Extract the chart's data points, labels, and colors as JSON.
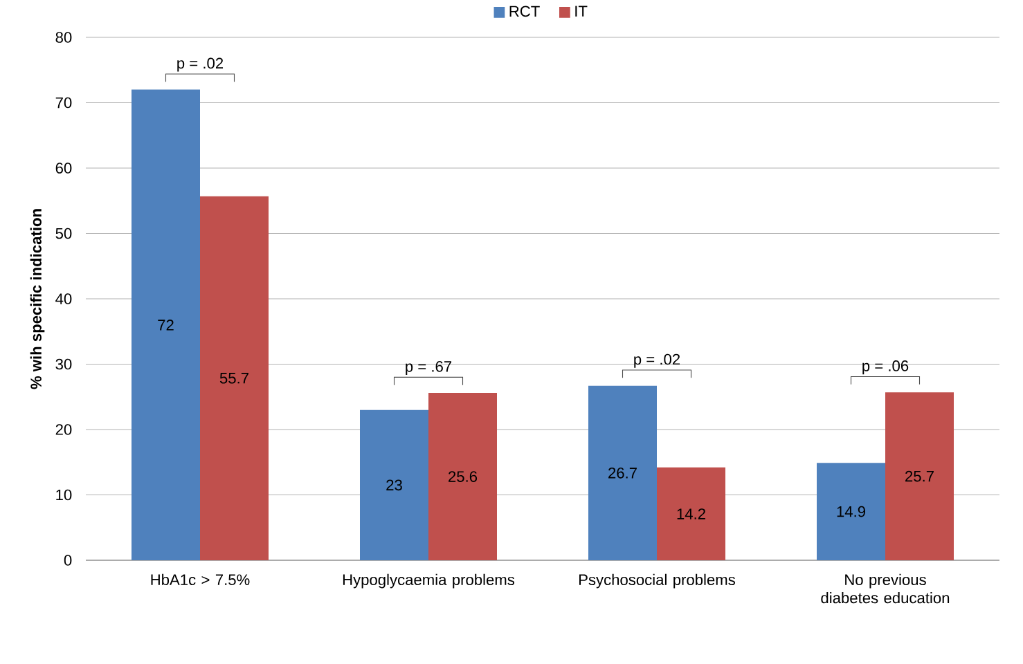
{
  "chart_data": {
    "type": "bar",
    "ylabel": "% wih specific indication",
    "categories": [
      "HbA1c > 7.5%",
      "Hypoglycaemia problems",
      "Psychosocial problems",
      "No previous diabetes education"
    ],
    "series": [
      {
        "name": "RCT",
        "color": "#4f81bd",
        "values": [
          72,
          23,
          26.7,
          14.9
        ]
      },
      {
        "name": "IT",
        "color": "#c0504d",
        "values": [
          55.7,
          25.6,
          14.2,
          25.7
        ]
      }
    ],
    "ylim": [
      0,
      80
    ],
    "yticks": [
      0,
      10,
      20,
      30,
      40,
      50,
      60,
      70,
      80
    ],
    "grid": "y",
    "legend": "top",
    "data_labels": true,
    "annotations": [
      "p = .02",
      "p = .67",
      "p = .02",
      "p = .06"
    ]
  }
}
